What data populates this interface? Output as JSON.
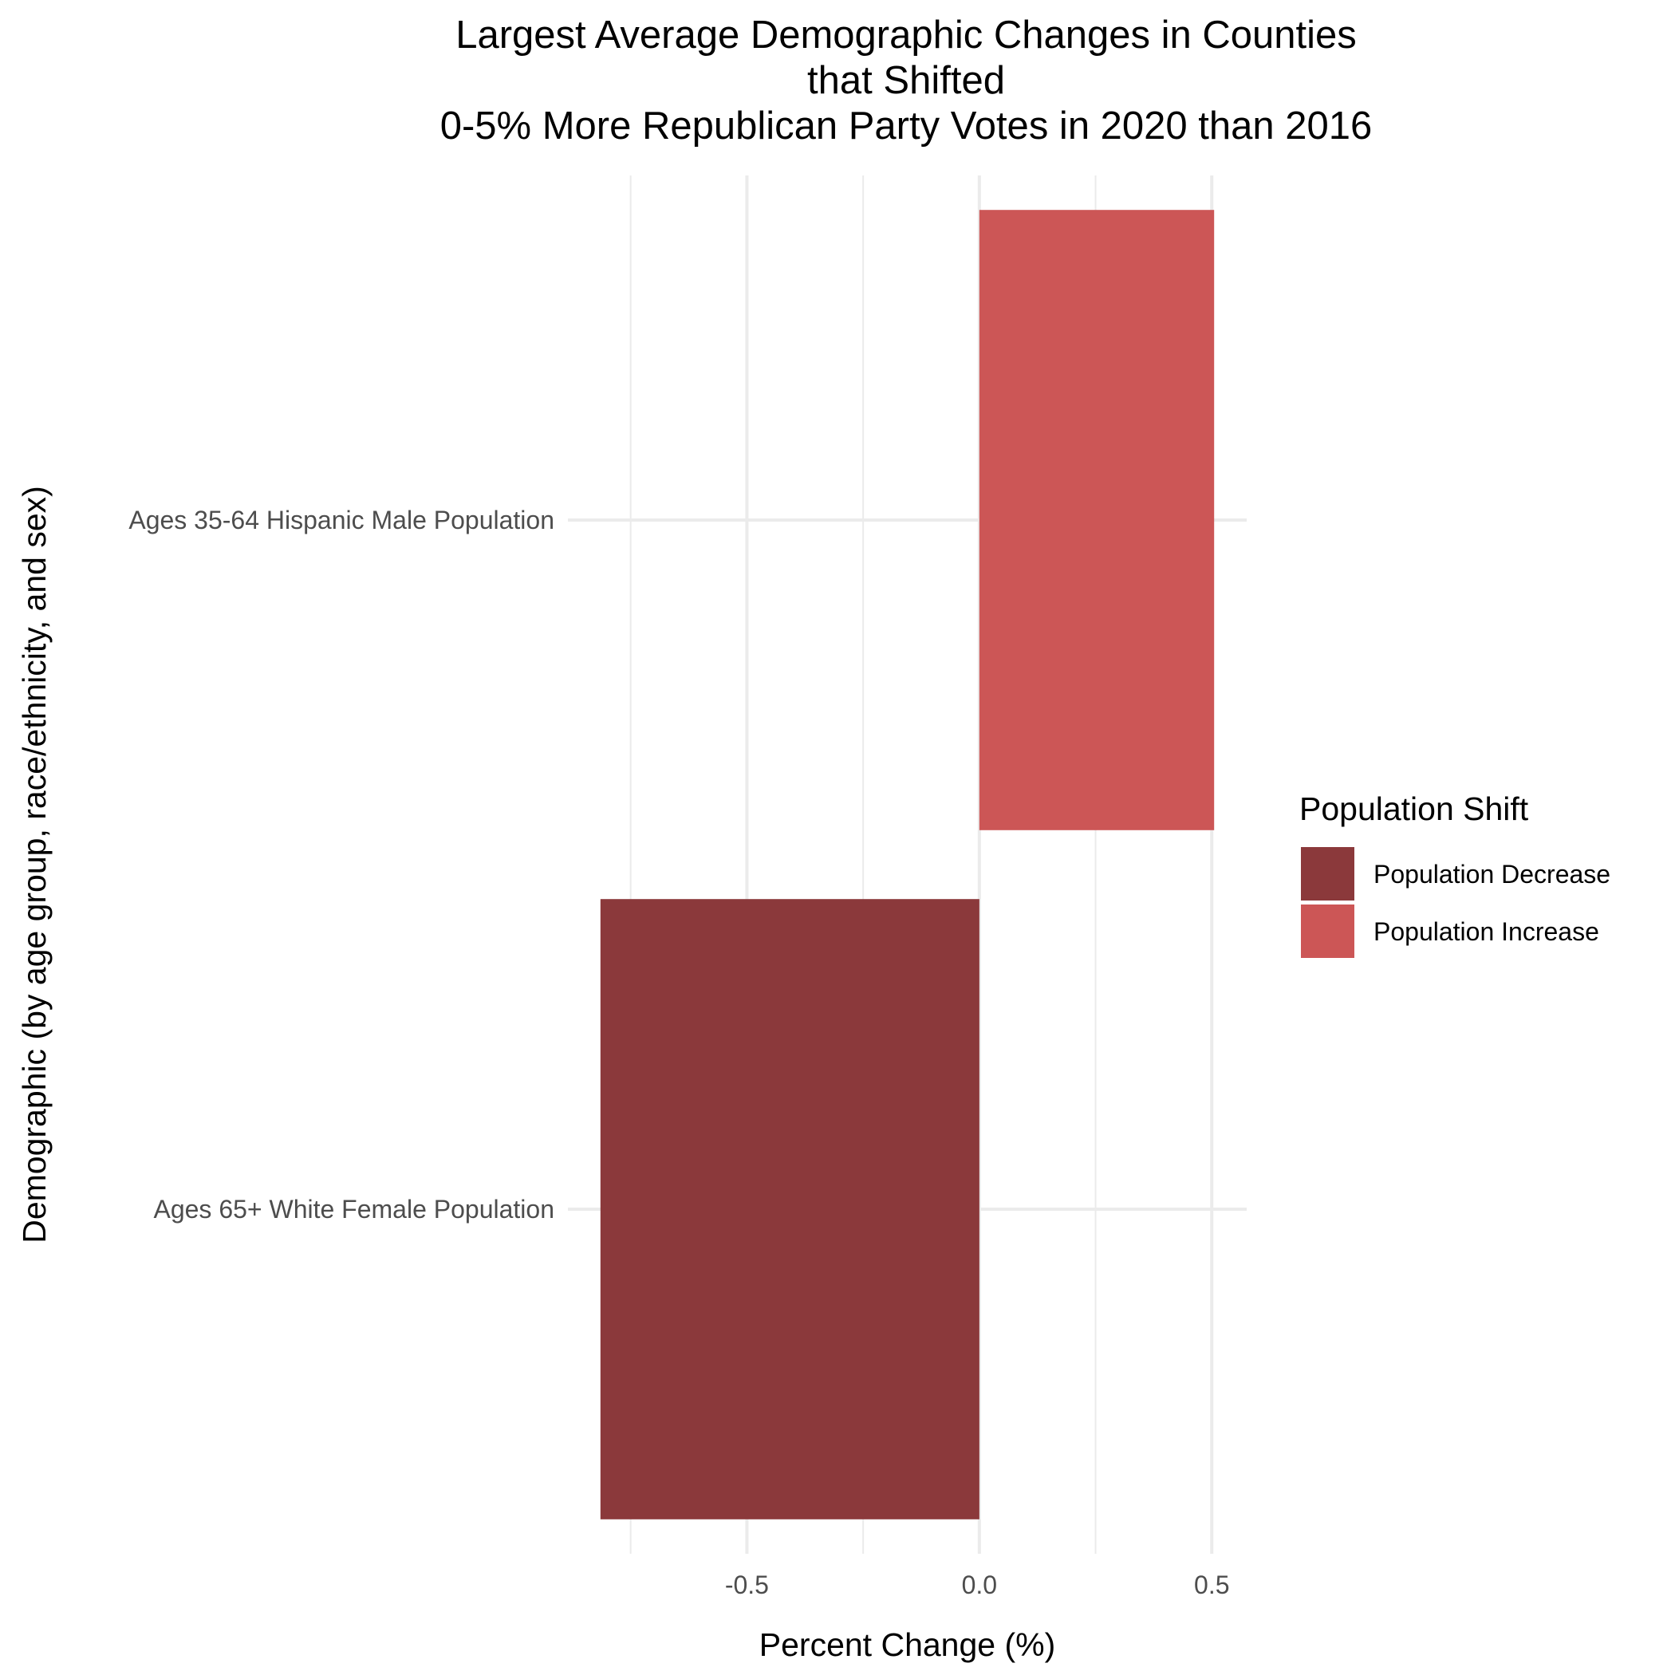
{
  "chart_data": {
    "type": "bar",
    "orientation": "horizontal",
    "title_lines": [
      "Largest Average Demographic Changes in Counties",
      "that Shifted",
      "0-5% More Republican Party Votes in 2020 than 2016"
    ],
    "xlabel": "Percent Change (%)",
    "ylabel": "Demographic (by age group, race/ethnicity, and sex)",
    "categories": [
      "Ages 35-64 Hispanic Male Population",
      "Ages 65+ White Female Population"
    ],
    "values": [
      0.505,
      -0.815
    ],
    "groups": [
      "Population Increase",
      "Population Decrease"
    ],
    "xlim": [
      -0.885,
      0.575
    ],
    "xticks": [
      -0.5,
      0.0,
      0.5
    ],
    "xtick_labels": [
      "-0.5",
      "0.0",
      "0.5"
    ],
    "grid": true,
    "legend": {
      "title": "Population Shift",
      "position": "right",
      "items": [
        {
          "label": "Population Decrease",
          "color": "#8b393b"
        },
        {
          "label": "Population Increase",
          "color": "#cc5656"
        }
      ]
    }
  }
}
